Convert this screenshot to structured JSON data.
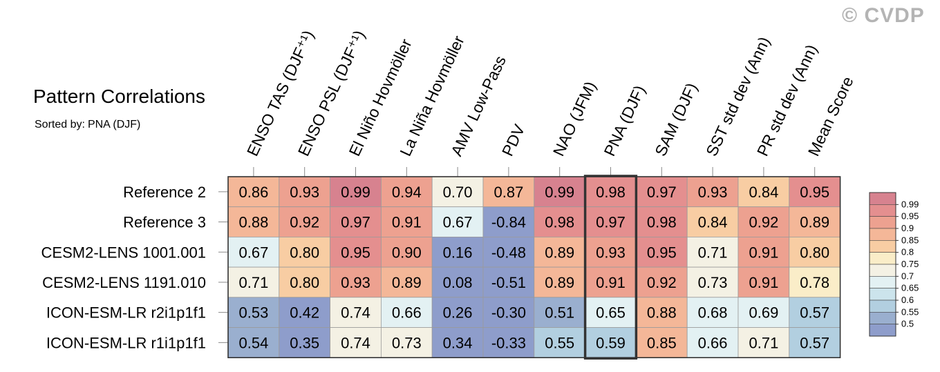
{
  "watermark": "© CVDP",
  "header": {
    "title": "Pattern Correlations",
    "sorted_label": "Sorted by:",
    "sorted_value": "PNA (DJF)"
  },
  "chart_data": {
    "type": "heatmap",
    "columns": [
      "ENSO TAS (DJF⁺¹)",
      "ENSO PSL (DJF⁺¹)",
      "El Niño Hovmöller",
      "La Niña Hovmöller",
      "AMV Low-Pass",
      "PDV",
      "NAO (JFM)",
      "PNA (DJF)",
      "SAM (DJF)",
      "SST std dev (Ann)",
      "PR std dev (Ann)",
      "Mean Score"
    ],
    "rows": [
      "Reference 2",
      "Reference 3",
      "CESM2-LENS 1001.001",
      "CESM2-LENS 1191.010",
      "ICON-ESM-LR r2i1p1f1",
      "ICON-ESM-LR r1i1p1f1"
    ],
    "values": [
      [
        "0.86",
        "0.93",
        "0.99",
        "0.94",
        "0.70",
        "0.87",
        "0.99",
        "0.98",
        "0.97",
        "0.93",
        "0.84",
        "0.95"
      ],
      [
        "0.88",
        "0.92",
        "0.97",
        "0.91",
        "0.67",
        "-0.84",
        "0.98",
        "0.97",
        "0.98",
        "0.84",
        "0.92",
        "0.89"
      ],
      [
        "0.67",
        "0.80",
        "0.95",
        "0.90",
        "0.16",
        "-0.48",
        "0.89",
        "0.93",
        "0.95",
        "0.71",
        "0.91",
        "0.80"
      ],
      [
        "0.71",
        "0.80",
        "0.93",
        "0.89",
        "0.08",
        "-0.51",
        "0.89",
        "0.91",
        "0.92",
        "0.73",
        "0.91",
        "0.78"
      ],
      [
        "0.53",
        "0.42",
        "0.74",
        "0.66",
        "0.26",
        "-0.30",
        "0.51",
        "0.65",
        "0.88",
        "0.68",
        "0.69",
        "0.57"
      ],
      [
        "0.54",
        "0.35",
        "0.74",
        "0.73",
        "0.34",
        "-0.33",
        "0.55",
        "0.59",
        "0.85",
        "0.66",
        "0.71",
        "0.57"
      ]
    ],
    "highlight_column": "PNA (DJF)",
    "colorbar": {
      "labels": [
        "0.99",
        "0.95",
        "0.9",
        "0.85",
        "0.8",
        "0.75",
        "0.7",
        "0.65",
        "0.6",
        "0.55",
        "0.5"
      ],
      "levels": [
        0.99,
        0.95,
        0.9,
        0.85,
        0.8,
        0.75,
        0.7,
        0.65,
        0.6,
        0.55,
        0.5
      ],
      "colors": [
        "#d7828f",
        "#e48f8f",
        "#eda190",
        "#f4b798",
        "#f8cda3",
        "#faedc8",
        "#f4f1e4",
        "#e3f1f3",
        "#cce4ec",
        "#b2cfe0",
        "#9aafcf",
        "#8e9dcb"
      ]
    }
  }
}
